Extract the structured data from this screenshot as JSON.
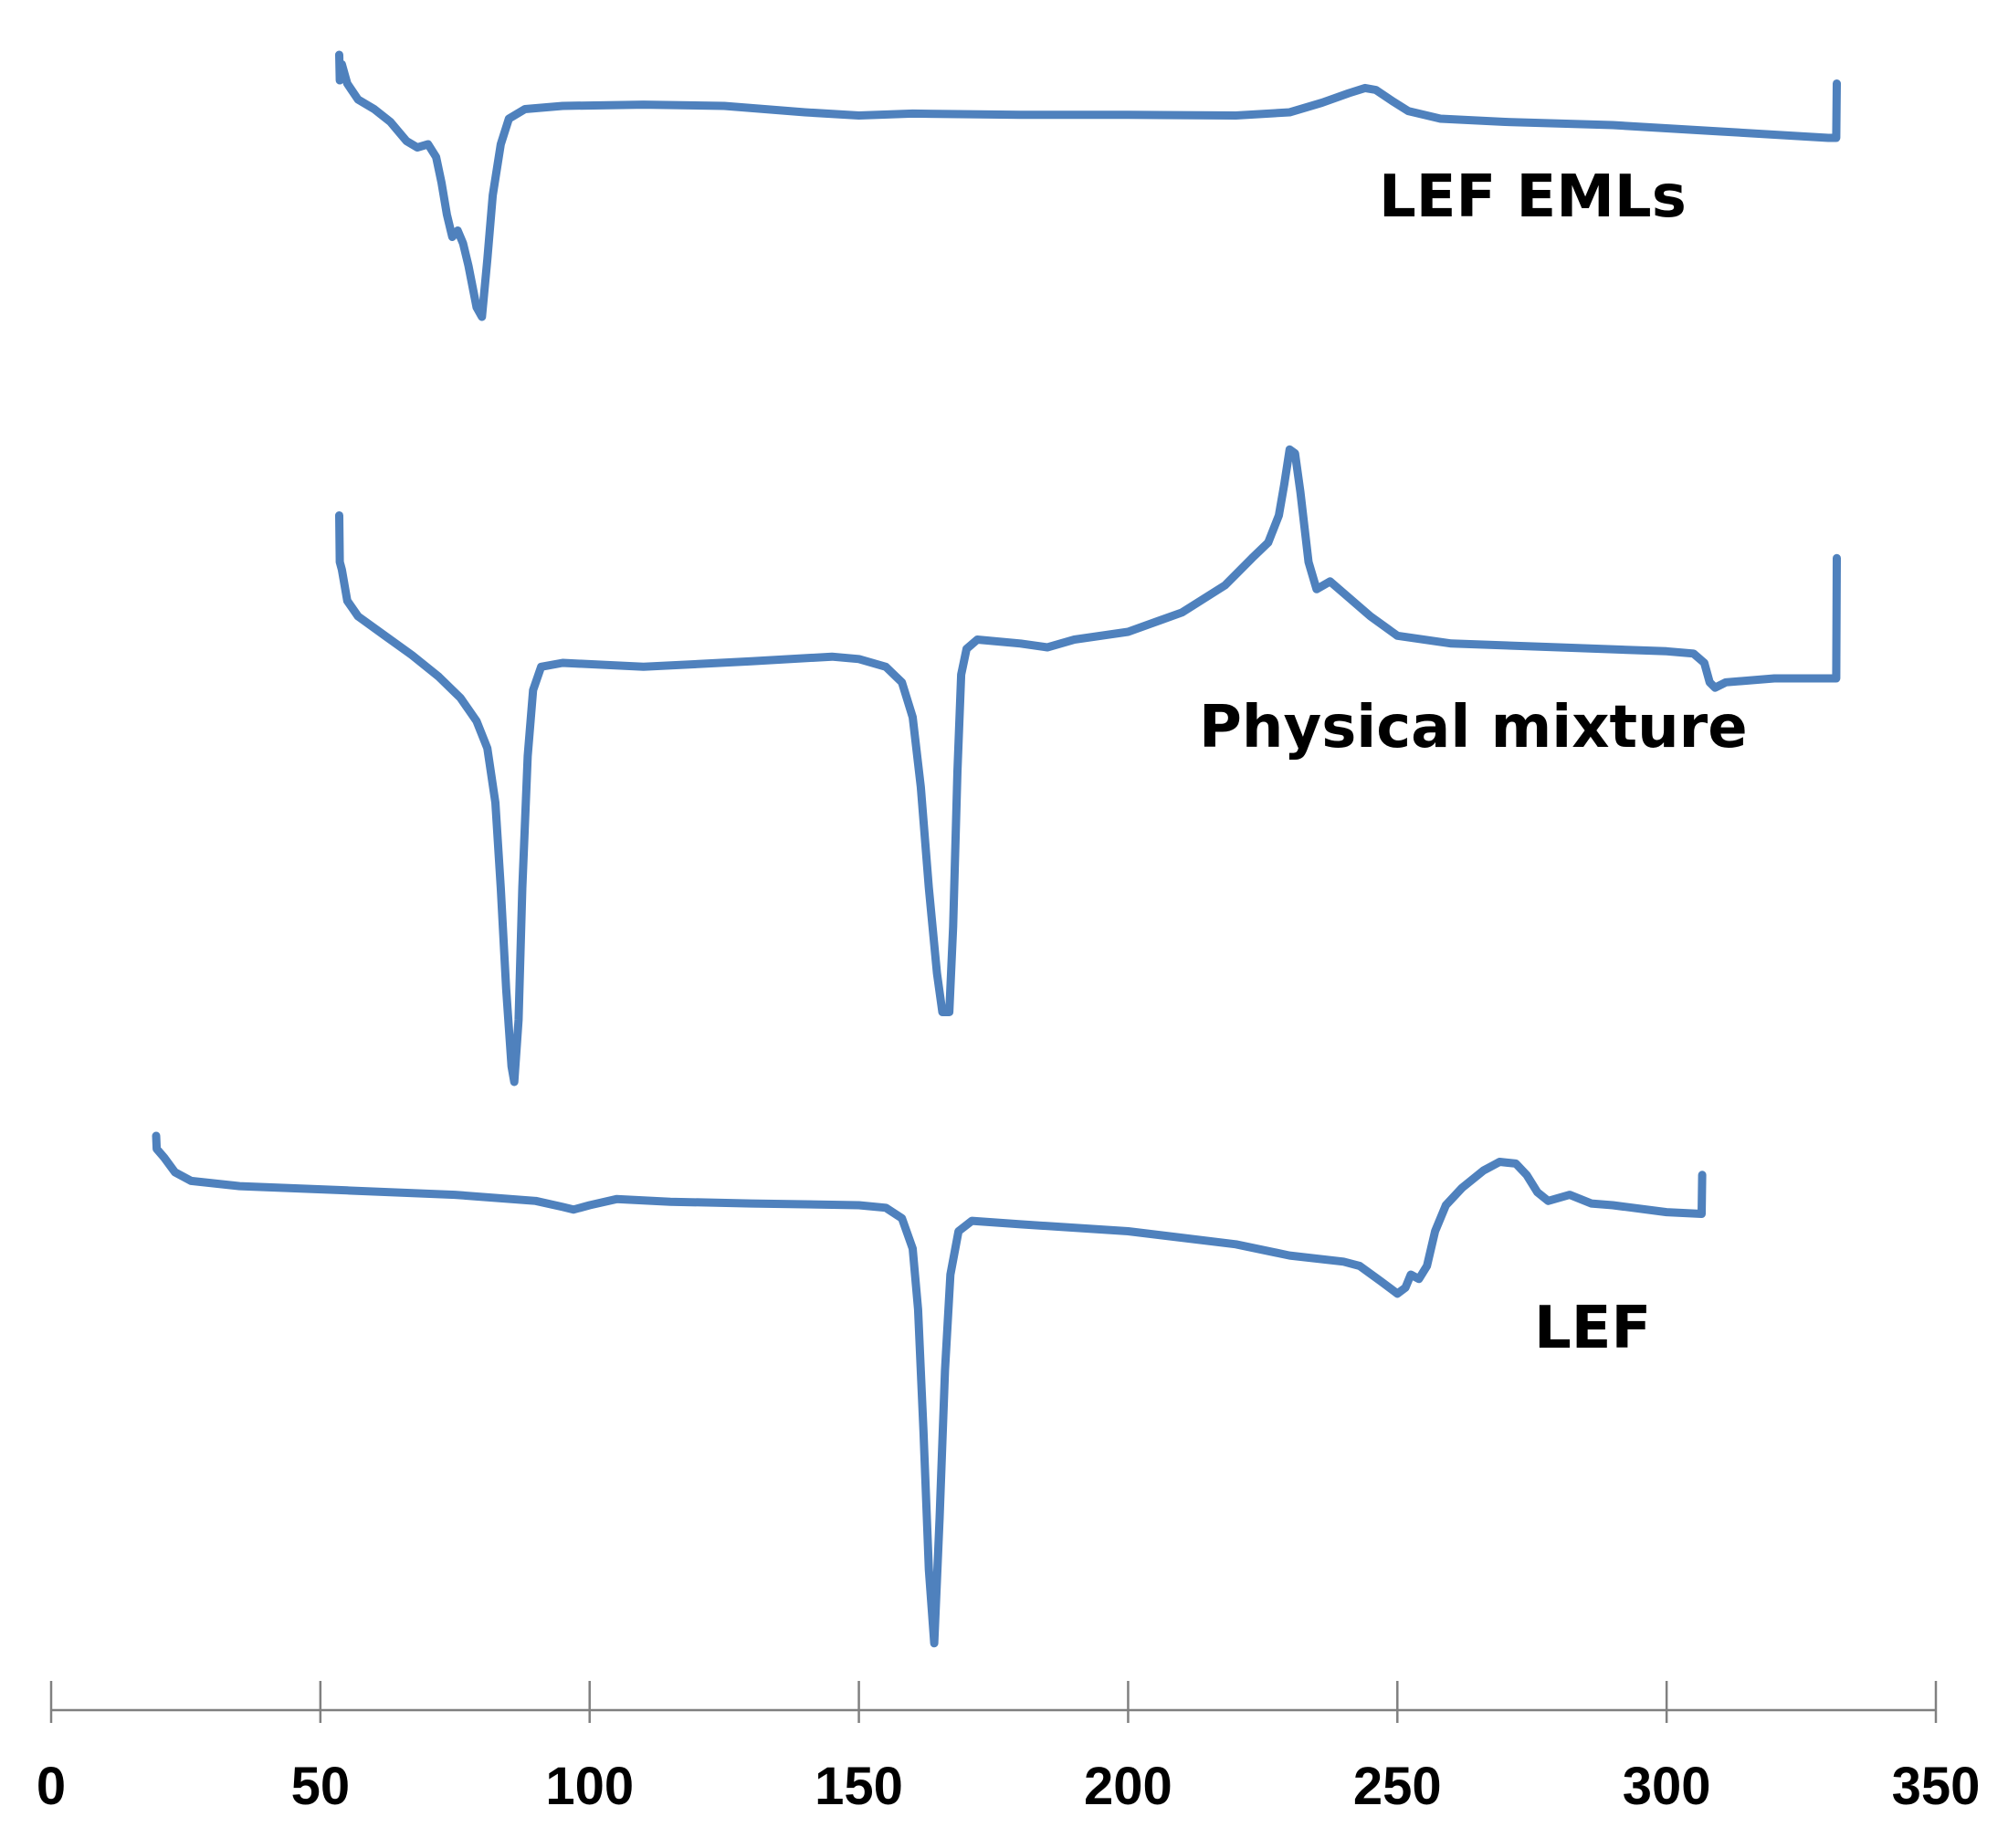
{
  "chart_data": {
    "type": "line",
    "title": "",
    "xlabel": "",
    "ylabel": "",
    "xlim": [
      0,
      350
    ],
    "x_ticks": [
      0,
      50,
      100,
      150,
      200,
      250,
      300,
      350
    ],
    "x_tick_labels": [
      "0",
      "50",
      "100",
      "150",
      "200",
      "250",
      "300",
      "350"
    ],
    "y_axis_shown": false,
    "grid": false,
    "line_color": "#4f81bd",
    "series": [
      {
        "name": "LEF EMLs",
        "points": [
          [
            53.5,
            1.0
          ],
          [
            53.6,
            0.6
          ],
          [
            54.0,
            0.85
          ],
          [
            55.0,
            0.55
          ],
          [
            57.0,
            0.3
          ],
          [
            60.0,
            0.15
          ],
          [
            63.0,
            -0.05
          ],
          [
            66.0,
            -0.35
          ],
          [
            68.0,
            -0.45
          ],
          [
            70.0,
            -0.4
          ],
          [
            71.5,
            -0.6
          ],
          [
            72.5,
            -1.0
          ],
          [
            73.5,
            -1.5
          ],
          [
            74.5,
            -1.85
          ],
          [
            75.5,
            -1.75
          ],
          [
            76.5,
            -1.95
          ],
          [
            77.5,
            -2.3
          ],
          [
            79.0,
            -2.95
          ],
          [
            80.0,
            -3.1
          ],
          [
            81.0,
            -2.2
          ],
          [
            82.0,
            -1.2
          ],
          [
            83.5,
            -0.4
          ],
          [
            85.0,
            0.0
          ],
          [
            88.0,
            0.15
          ],
          [
            95.0,
            0.2
          ],
          [
            110.0,
            0.22
          ],
          [
            125.0,
            0.2
          ],
          [
            140.0,
            0.1
          ],
          [
            150.0,
            0.05
          ],
          [
            160.0,
            0.08
          ],
          [
            180.0,
            0.06
          ],
          [
            200.0,
            0.06
          ],
          [
            220.0,
            0.05
          ],
          [
            230.0,
            0.1
          ],
          [
            236.0,
            0.25
          ],
          [
            241.0,
            0.4
          ],
          [
            244.0,
            0.48
          ],
          [
            246.0,
            0.45
          ],
          [
            249.0,
            0.28
          ],
          [
            252.0,
            0.12
          ],
          [
            258.0,
            0.0
          ],
          [
            270.0,
            -0.05
          ],
          [
            290.0,
            -0.1
          ],
          [
            310.0,
            -0.2
          ],
          [
            330.0,
            -0.3
          ],
          [
            331.5,
            -0.3
          ],
          [
            331.6,
            0.55
          ]
        ]
      },
      {
        "name": "Physical mixture",
        "points": [
          [
            53.5,
            1.3
          ],
          [
            53.6,
            0.7
          ],
          [
            54.0,
            0.6
          ],
          [
            55.0,
            0.2
          ],
          [
            57.0,
            0.0
          ],
          [
            62.0,
            -0.25
          ],
          [
            67.0,
            -0.5
          ],
          [
            72.0,
            -0.78
          ],
          [
            76.0,
            -1.05
          ],
          [
            79.0,
            -1.35
          ],
          [
            81.0,
            -1.7
          ],
          [
            82.5,
            -2.4
          ],
          [
            83.5,
            -3.5
          ],
          [
            84.5,
            -4.8
          ],
          [
            85.5,
            -5.8
          ],
          [
            86.0,
            -6.0
          ],
          [
            86.8,
            -5.2
          ],
          [
            87.5,
            -3.5
          ],
          [
            88.5,
            -1.8
          ],
          [
            89.5,
            -0.95
          ],
          [
            91.0,
            -0.65
          ],
          [
            95.0,
            -0.6
          ],
          [
            110.0,
            -0.65
          ],
          [
            130.0,
            -0.58
          ],
          [
            145.0,
            -0.52
          ],
          [
            150.0,
            -0.55
          ],
          [
            155.0,
            -0.65
          ],
          [
            158.0,
            -0.85
          ],
          [
            160.0,
            -1.3
          ],
          [
            161.5,
            -2.2
          ],
          [
            163.0,
            -3.5
          ],
          [
            164.5,
            -4.6
          ],
          [
            165.5,
            -5.1
          ],
          [
            166.8,
            -5.1
          ],
          [
            167.5,
            -4.0
          ],
          [
            168.3,
            -2.0
          ],
          [
            169.0,
            -0.75
          ],
          [
            170.0,
            -0.42
          ],
          [
            172.0,
            -0.3
          ],
          [
            180.0,
            -0.35
          ],
          [
            185.0,
            -0.4
          ],
          [
            190.0,
            -0.3
          ],
          [
            200.0,
            -0.2
          ],
          [
            210.0,
            0.05
          ],
          [
            218.0,
            0.4
          ],
          [
            223.0,
            0.75
          ],
          [
            226.0,
            0.95
          ],
          [
            228.0,
            1.3
          ],
          [
            229.0,
            1.7
          ],
          [
            230.0,
            2.15
          ],
          [
            231.0,
            2.1
          ],
          [
            232.0,
            1.6
          ],
          [
            233.5,
            0.7
          ],
          [
            235.0,
            0.35
          ],
          [
            237.5,
            0.45
          ],
          [
            240.0,
            0.3
          ],
          [
            245.0,
            0.0
          ],
          [
            250.0,
            -0.25
          ],
          [
            260.0,
            -0.35
          ],
          [
            280.0,
            -0.4
          ],
          [
            300.0,
            -0.45
          ],
          [
            305.0,
            -0.48
          ],
          [
            307.0,
            -0.6
          ],
          [
            308.0,
            -0.85
          ],
          [
            309.0,
            -0.92
          ],
          [
            311.0,
            -0.85
          ],
          [
            320.0,
            -0.8
          ],
          [
            331.5,
            -0.8
          ],
          [
            331.6,
            0.75
          ]
        ]
      },
      {
        "name": "LEF",
        "points": [
          [
            19.5,
            0.2
          ],
          [
            19.6,
            0.05
          ],
          [
            21.0,
            -0.05
          ],
          [
            23.0,
            -0.22
          ],
          [
            26.0,
            -0.32
          ],
          [
            35.0,
            -0.38
          ],
          [
            55.0,
            -0.43
          ],
          [
            75.0,
            -0.48
          ],
          [
            90.0,
            -0.55
          ],
          [
            95.0,
            -0.62
          ],
          [
            97.0,
            -0.65
          ],
          [
            100.0,
            -0.6
          ],
          [
            105.0,
            -0.53
          ],
          [
            115.0,
            -0.56
          ],
          [
            130.0,
            -0.58
          ],
          [
            150.0,
            -0.6
          ],
          [
            155.0,
            -0.63
          ],
          [
            158.0,
            -0.75
          ],
          [
            160.0,
            -1.1
          ],
          [
            161.0,
            -1.8
          ],
          [
            162.0,
            -3.2
          ],
          [
            163.0,
            -4.8
          ],
          [
            164.0,
            -5.65
          ],
          [
            165.0,
            -4.2
          ],
          [
            166.0,
            -2.5
          ],
          [
            167.0,
            -1.4
          ],
          [
            168.5,
            -0.9
          ],
          [
            171.0,
            -0.78
          ],
          [
            180.0,
            -0.82
          ],
          [
            200.0,
            -0.9
          ],
          [
            220.0,
            -1.05
          ],
          [
            230.0,
            -1.18
          ],
          [
            240.0,
            -1.25
          ],
          [
            243.0,
            -1.3
          ],
          [
            247.0,
            -1.48
          ],
          [
            250.0,
            -1.62
          ],
          [
            251.5,
            -1.55
          ],
          [
            252.5,
            -1.4
          ],
          [
            254.0,
            -1.45
          ],
          [
            255.5,
            -1.3
          ],
          [
            257.0,
            -0.9
          ],
          [
            259.0,
            -0.6
          ],
          [
            262.0,
            -0.4
          ],
          [
            266.0,
            -0.2
          ],
          [
            269.0,
            -0.1
          ],
          [
            272.0,
            -0.12
          ],
          [
            274.0,
            -0.25
          ],
          [
            276.0,
            -0.45
          ],
          [
            278.0,
            -0.55
          ],
          [
            282.0,
            -0.48
          ],
          [
            286.0,
            -0.58
          ],
          [
            290.0,
            -0.6
          ],
          [
            300.0,
            -0.68
          ],
          [
            306.5,
            -0.7
          ],
          [
            306.6,
            -0.25
          ]
        ]
      }
    ],
    "annotations": [
      "LEF EMLs",
      "Physical mixture",
      "LEF"
    ]
  }
}
